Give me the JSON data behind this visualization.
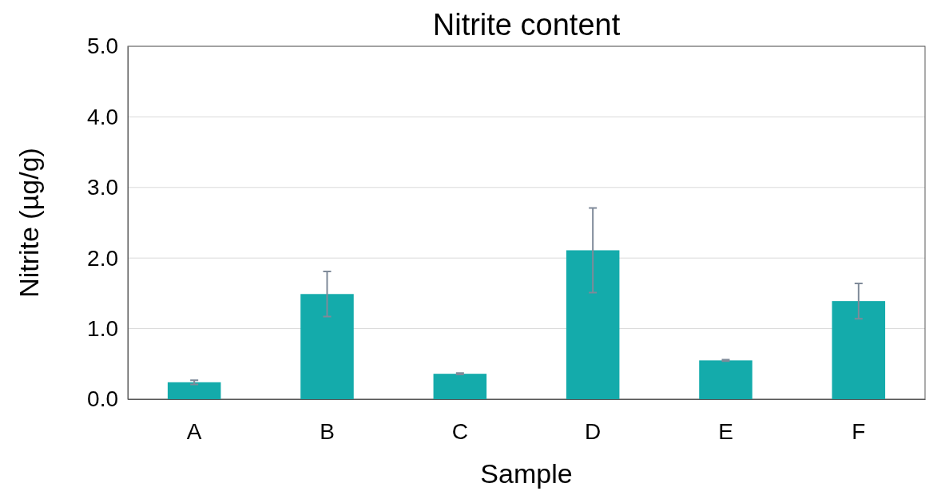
{
  "chart_data": {
    "type": "bar",
    "title": "Nitrite content",
    "xlabel": "Sample",
    "ylabel": "Nitrite (µg/g)",
    "categories": [
      "A",
      "B",
      "C",
      "D",
      "E",
      "F"
    ],
    "values": [
      0.24,
      1.49,
      0.36,
      2.11,
      0.55,
      1.39
    ],
    "errors": [
      0.03,
      0.32,
      0.01,
      0.6,
      0.01,
      0.25
    ],
    "color": "#14abab",
    "ylim": [
      0,
      5
    ],
    "yticks": [
      {
        "value": 0,
        "label": "0.0"
      },
      {
        "value": 1,
        "label": "1.0"
      },
      {
        "value": 2,
        "label": "2.0"
      },
      {
        "value": 3,
        "label": "3.0"
      },
      {
        "value": 4,
        "label": "4.0"
      },
      {
        "value": 5,
        "label": "5.0"
      }
    ],
    "grid": "y"
  }
}
